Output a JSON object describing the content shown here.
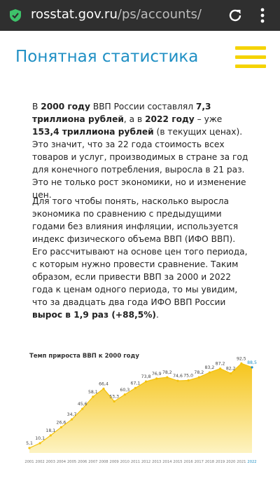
{
  "browser": {
    "url_host": "rosstat.gov.ru",
    "url_path": "/ps/accounts/"
  },
  "header": {
    "title": "Понятная статистика"
  },
  "article": {
    "p1": [
      {
        "t": "В ",
        "b": false
      },
      {
        "t": "2000 году",
        "b": true
      },
      {
        "t": " ВВП России составлял ",
        "b": false
      },
      {
        "t": "7,3 триллиона рублей",
        "b": true
      },
      {
        "t": ", а в ",
        "b": false
      },
      {
        "t": "2022 году",
        "b": true
      },
      {
        "t": " – уже ",
        "b": false
      },
      {
        "t": "153,4 триллиона рублей",
        "b": true
      },
      {
        "t": " (в текущих ценах). Это значит, что за 22 года стоимость всех товаров и услуг, производимых в стране за год для конечного потребления, выросла в 21 раз. Это не только рост экономики, но и изменение цен.",
        "b": false
      }
    ],
    "p2": [
      {
        "t": "Для того чтобы понять, насколько выросла экономика по сравнению с предыдущими годами без влияния инфляции, используется индекс физического объема ВВП (ИФО ВВП). Его рассчитывают на основе цен того периода, с которым нужно провести сравнение. Таким образом, если привести ВВП за 2000 и 2022 года к ценам одного периода, то мы увидим, что за двадцать два года ИФО ВВП России ",
        "b": false
      },
      {
        "t": "вырос в 1,9 раз (+88,5%)",
        "b": true
      },
      {
        "t": ".",
        "b": false
      }
    ]
  },
  "chart_data": {
    "type": "area",
    "title": "Темп прироста ВВП к 2000 году",
    "x": [
      "2001",
      "2002",
      "2003",
      "2004",
      "2005",
      "2006",
      "2007",
      "2008",
      "2009",
      "2010",
      "2011",
      "2012",
      "2013",
      "2014",
      "2015",
      "2016",
      "2017",
      "2018",
      "2019",
      "2020",
      "2021",
      "2022"
    ],
    "values": [
      5.1,
      10.1,
      18.1,
      26.6,
      34.7,
      45.6,
      58.1,
      66.4,
      53.3,
      60.3,
      67.1,
      73.8,
      76.9,
      78.2,
      74.6,
      75.0,
      78.2,
      83.2,
      87.2,
      82.2,
      92.5,
      88.5
    ],
    "data_labels": [
      "5,1",
      "10,1",
      "18,1",
      "26,6",
      "34,7",
      "45,6",
      "58,1",
      "66,4",
      "53,3",
      "60,3",
      "67,1",
      "73,8",
      "76,9",
      "78,2",
      "74,6",
      "75,0",
      "78,2",
      "83,2",
      "87,2",
      "82,2",
      "92,5",
      "88,5"
    ],
    "ylim": [
      0,
      100
    ],
    "grid": false,
    "highlight_last": true,
    "colors": {
      "fill_top": "#f6c51c",
      "fill_bottom": "#fdf3c2",
      "line": "#f4c20d",
      "highlight": "#1f8fc4"
    }
  }
}
